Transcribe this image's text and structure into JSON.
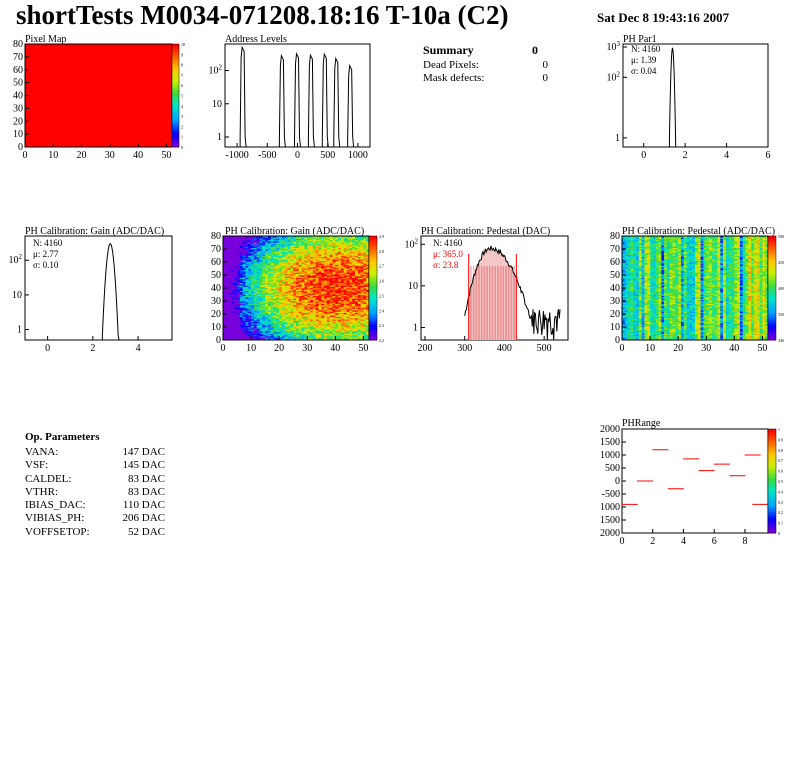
{
  "header": {
    "title": "shortTests M0034-071208.18:16 T-10a (C2)",
    "date": "Sat Dec  8 19:43:16 2007"
  },
  "summary": {
    "title": "Summary",
    "title_value": "0",
    "rows": [
      {
        "label": "Dead Pixels:",
        "value": "0"
      },
      {
        "label": "Mask defects:",
        "value": "0"
      }
    ]
  },
  "params": {
    "title": "Op. Parameters",
    "rows": [
      {
        "name": "VANA:",
        "value": "147 DAC"
      },
      {
        "name": "VSF:",
        "value": "145 DAC"
      },
      {
        "name": "CALDEL:",
        "value": "83 DAC"
      },
      {
        "name": "VTHR:",
        "value": "83 DAC"
      },
      {
        "name": "IBIAS_DAC:",
        "value": "110 DAC"
      },
      {
        "name": "VIBIAS_PH:",
        "value": "206 DAC"
      },
      {
        "name": "VOFFSETOP:",
        "value": "52 DAC"
      }
    ]
  },
  "colors": {
    "hist_line": "#000000",
    "red": "#ff0000",
    "dark_red": "#cc0000"
  },
  "chart_data": [
    {
      "id": "pixelmap",
      "type": "heatmap",
      "title": "Pixel Map",
      "xlim": [
        0,
        52
      ],
      "ylim": [
        0,
        80
      ],
      "xticks": [
        "0",
        "10",
        "20",
        "30",
        "40",
        "50"
      ],
      "yticks": [
        "0",
        "10",
        "20",
        "30",
        "40",
        "50",
        "60",
        "70",
        "80"
      ],
      "fill": "uniform-max",
      "zticks": [
        "10",
        "9",
        "8",
        "7",
        "6",
        "5",
        "4",
        "3",
        "2",
        "1",
        "0"
      ]
    },
    {
      "id": "addr",
      "type": "bar",
      "title": "Address Levels",
      "log_y": true,
      "xlim": [
        -1200,
        1200
      ],
      "xticks": [
        "-1000",
        "-500",
        "0",
        "500",
        "1000"
      ],
      "yticks": [
        "1",
        "10",
        "10²"
      ],
      "peaks": [
        {
          "x": -900,
          "height": 500
        },
        {
          "x": -250,
          "height": 280
        },
        {
          "x": 0,
          "height": 320
        },
        {
          "x": 230,
          "height": 290
        },
        {
          "x": 460,
          "height": 310
        },
        {
          "x": 650,
          "height": 230
        },
        {
          "x": 880,
          "height": 140
        }
      ]
    },
    {
      "id": "phpar1",
      "type": "bar",
      "title": "PH Par1",
      "log_y": true,
      "xlim": [
        -1,
        6
      ],
      "xticks": [
        "0",
        "2",
        "4",
        "6"
      ],
      "yticks": [
        "1",
        "10²",
        "10³"
      ],
      "stats": {
        "N": "N: 4160",
        "mu": "μ: 1.39",
        "sigma": "σ: 0.04"
      },
      "mean": 1.39,
      "rms": 0.04,
      "peak": 900
    },
    {
      "id": "gainhist",
      "type": "bar",
      "title": "PH Calibration: Gain (ADC/DAC)",
      "log_y": true,
      "xlim": [
        -1,
        5.5
      ],
      "xticks": [
        "0",
        "2",
        "4"
      ],
      "yticks": [
        "1",
        "10",
        "10²"
      ],
      "stats": {
        "N": "N: 4160",
        "mu": "μ: 2.77",
        "sigma": "σ: 0.10"
      },
      "mean": 2.77,
      "rms": 0.1,
      "peak": 300
    },
    {
      "id": "gainmap",
      "type": "heatmap",
      "title": "PH Calibration: Gain (ADC/DAC)",
      "xlim": [
        0,
        52
      ],
      "ylim": [
        0,
        80
      ],
      "xticks": [
        "0",
        "10",
        "20",
        "30",
        "40",
        "50"
      ],
      "yticks": [
        "0",
        "10",
        "20",
        "30",
        "40",
        "50",
        "60",
        "70",
        "80"
      ],
      "zticks": [
        "2.9",
        "2.8",
        "2.7",
        "2.6",
        "2.5",
        "2.4",
        "2.3",
        "2.2"
      ]
    },
    {
      "id": "pedhist",
      "type": "bar",
      "title": "PH Calibration: Pedestal (DAC)",
      "log_y": true,
      "xlim": [
        190,
        560
      ],
      "xticks": [
        "200",
        "300",
        "400",
        "500"
      ],
      "yticks": [
        "1",
        "10",
        "10²"
      ],
      "stats": {
        "N": "N: 4160",
        "mu": "μ: 365.0",
        "sigma": "σ: 23.8"
      },
      "mean": 365.0,
      "rms": 23.8,
      "peak": 80,
      "cut_lines": [
        310,
        430
      ]
    },
    {
      "id": "pedmap",
      "type": "heatmap",
      "title": "PH Calibration: Pedestal (ADC/DAC)",
      "xlim": [
        0,
        52
      ],
      "ylim": [
        0,
        80
      ],
      "xticks": [
        "0",
        "10",
        "20",
        "30",
        "40",
        "50"
      ],
      "yticks": [
        "0",
        "10",
        "20",
        "30",
        "40",
        "50",
        "60",
        "70",
        "80"
      ],
      "zticks": [
        "500",
        "450",
        "400",
        "350",
        "340"
      ]
    },
    {
      "id": "phrange",
      "type": "scatter",
      "title": "PHRange",
      "xlim": [
        0,
        9.5
      ],
      "ylim": [
        -2000,
        2000
      ],
      "xticks": [
        "0",
        "2",
        "4",
        "6",
        "8"
      ],
      "yticks": [
        "2000",
        "1500",
        "1000",
        "500",
        "0",
        "-500",
        "1000",
        "1500",
        "2000"
      ],
      "zticks": [
        "1",
        "0.9",
        "0.8",
        "0.7",
        "0.6",
        "0.5",
        "0.4",
        "0.3",
        "0.2",
        "0.1",
        "0"
      ],
      "points": [
        {
          "x": 0.5,
          "y": -900
        },
        {
          "x": 1.5,
          "y": 0
        },
        {
          "x": 2.5,
          "y": 1200
        },
        {
          "x": 3.5,
          "y": -300
        },
        {
          "x": 4.5,
          "y": 850
        },
        {
          "x": 5.5,
          "y": 400
        },
        {
          "x": 6.5,
          "y": 650
        },
        {
          "x": 7.5,
          "y": 200
        },
        {
          "x": 8.5,
          "y": 1000
        },
        {
          "x": 9.0,
          "y": -900
        }
      ]
    }
  ]
}
